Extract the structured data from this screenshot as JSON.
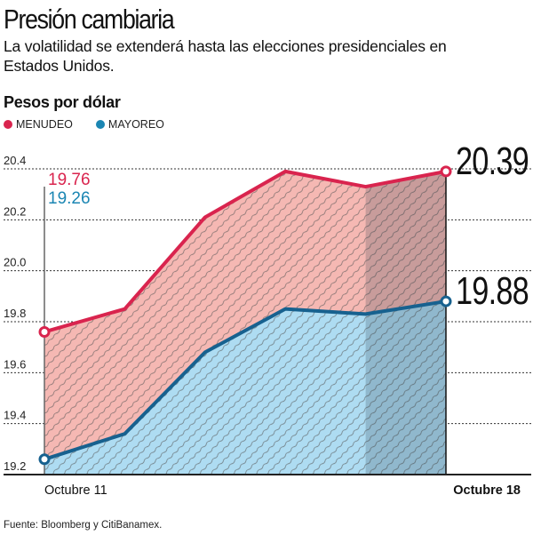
{
  "header": {
    "title": "Presión cambiaria",
    "subtitle": "La volatilidad se extenderá hasta las elecciones presidenciales en Estados Unidos.",
    "unit_label": "Pesos por dólar"
  },
  "legend": [
    {
      "label": "MENUDEO",
      "color": "#d9244e"
    },
    {
      "label": "MAYOREO",
      "color": "#1b86b3"
    }
  ],
  "footer": {
    "source": "Fuente: Bloomberg y CitiBanamex."
  },
  "chart_data": {
    "type": "area",
    "title": "Presión cambiaria",
    "ylabel": "Pesos por dólar",
    "ylim": [
      19.2,
      20.4
    ],
    "yticks": [
      "19.2",
      "19.4",
      "19.6",
      "19.8",
      "20.0",
      "20.2",
      "20.4"
    ],
    "ytick_values": [
      19.2,
      19.4,
      19.6,
      19.8,
      20.0,
      20.2,
      20.4
    ],
    "x_labels": {
      "start": "Octubre 11",
      "end": "Octubre 18"
    },
    "n_points": 6,
    "grid": true,
    "highlight_from_index": 4,
    "series": [
      {
        "name": "MENUDEO",
        "color": "#d9244e",
        "fill": "#f5b8b3",
        "values": [
          19.76,
          19.85,
          20.21,
          20.39,
          20.33,
          20.39
        ],
        "start_label": "19.76",
        "end_label": "20.39"
      },
      {
        "name": "MAYOREO",
        "color": "#17618f",
        "label_color": "#1b86b3",
        "fill": "#aedcf2",
        "values": [
          19.26,
          19.36,
          19.68,
          19.85,
          19.83,
          19.88
        ],
        "start_label": "19.26",
        "end_label": "19.88"
      }
    ]
  }
}
